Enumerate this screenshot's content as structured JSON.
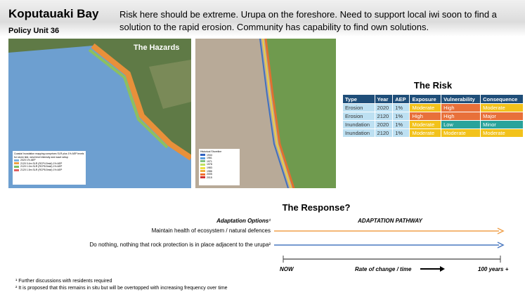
{
  "header": {
    "title": "Koputauaki Bay",
    "subtitle": "Policy Unit 36",
    "intro": "Risk here should be extreme. Urupa on the foreshore. Need to support local iwi soon to find a solution to the rapid erosion. Community has capability to find own solutions."
  },
  "hazards": {
    "title": "The Hazards",
    "map_legend": {
      "title": "Coastal Inundation mapping comprises SLR plus 1% AEP levels for storm tide, wind level intensity and wave setup",
      "items": [
        {
          "label": "2020 1% AEP",
          "color": "#7fb2e0"
        },
        {
          "label": "2120 0.4m SLR (RCP4.5mid) 1% AEP",
          "color": "#f0a040"
        },
        {
          "label": "2120 1.0m SLR (RCP8.5mid) 1% AEP",
          "color": "#7cc063"
        },
        {
          "label": "2120 1.5m SLR (RCP8.5mid) 1% AEP",
          "color": "#e06060"
        }
      ]
    },
    "shoreline_legend": {
      "title": "Historical Shoreline",
      "items": [
        {
          "label": "1944",
          "color": "#3060c0"
        },
        {
          "label": "1961",
          "color": "#60a0e0"
        },
        {
          "label": "1971",
          "color": "#80c080"
        },
        {
          "label": "1978",
          "color": "#c0e060"
        },
        {
          "label": "1983",
          "color": "#f0e040"
        },
        {
          "label": "1986",
          "color": "#f0b040"
        },
        {
          "label": "2005",
          "color": "#f07030"
        },
        {
          "label": "2015",
          "color": "#d03030"
        }
      ]
    }
  },
  "risk": {
    "title": "The Risk",
    "header": [
      "Type",
      "Year",
      "AEP",
      "Exposure",
      "Vulnerability",
      "Consequence"
    ],
    "rows": [
      [
        "Erosion",
        "2020",
        "1%",
        "Moderate",
        "High",
        "Moderate"
      ],
      [
        "Erosion",
        "2120",
        "1%",
        "High",
        "High",
        "Major"
      ],
      [
        "Inundation",
        "2020",
        "1%",
        "Moderate",
        "Low",
        "Minor"
      ],
      [
        "Inundation",
        "2120",
        "1%",
        "Moderate",
        "Moderate",
        "Moderate"
      ]
    ],
    "cell_colors": [
      [
        null,
        null,
        null,
        "#f2c21b",
        "#e8703a",
        "#f2c21b"
      ],
      [
        null,
        null,
        null,
        "#e8703a",
        "#e8703a",
        "#e8703a"
      ],
      [
        null,
        null,
        null,
        "#f2c21b",
        "#2aa39b",
        "#2aa39b"
      ],
      [
        null,
        null,
        null,
        "#f2c21b",
        "#f2c21b",
        "#f2c21b"
      ]
    ]
  },
  "response": {
    "title": "The Response?",
    "options_heading": "Adaptation Options¹",
    "pathway_heading": "ADAPTATION PATHWAY",
    "options": [
      {
        "label": "Maintain health of ecosystem / natural defences",
        "color": "#f0a04b"
      },
      {
        "label": "Do nothing, nothing that rock protection is in place adjacent to the urupa²",
        "color": "#4a78c0"
      }
    ],
    "timeline": {
      "start": "NOW",
      "middle": "Rate of change / time",
      "end": "100 years +"
    }
  },
  "footnotes": [
    "¹ Further discussions with residents required",
    "² It is proposed that this remains in situ but will be overtopped with increasing frequency over time"
  ]
}
